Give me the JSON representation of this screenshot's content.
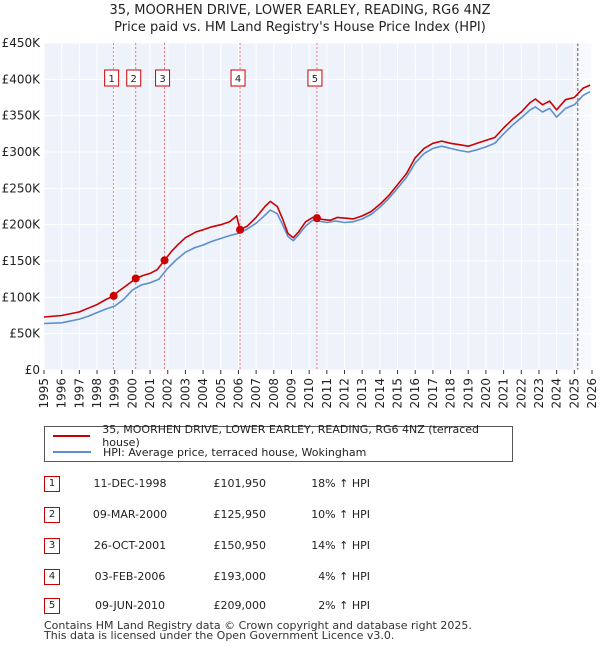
{
  "chart_data": {
    "type": "line",
    "title": "35, MOORHEN DRIVE, LOWER EARLEY, READING, RG6 4NZ",
    "subtitle": "Price paid vs. HM Land Registry's House Price Index (HPI)",
    "xlabel": "",
    "ylabel": "",
    "xlim": [
      1995,
      2026
    ],
    "ylim": [
      0,
      450000
    ],
    "y_ticks": [
      0,
      50000,
      100000,
      150000,
      200000,
      250000,
      300000,
      350000,
      400000,
      450000
    ],
    "y_tick_labels": [
      "£0",
      "£50K",
      "£100K",
      "£150K",
      "£200K",
      "£250K",
      "£300K",
      "£350K",
      "£400K",
      "£450K"
    ],
    "x_ticks": [
      1995,
      1996,
      1997,
      1998,
      1999,
      2000,
      2001,
      2002,
      2003,
      2004,
      2005,
      2006,
      2007,
      2008,
      2009,
      2010,
      2011,
      2012,
      2013,
      2014,
      2015,
      2016,
      2017,
      2018,
      2019,
      2020,
      2021,
      2022,
      2023,
      2024,
      2025,
      2026
    ],
    "x_tick_labels": [
      "1995",
      "1996",
      "1997",
      "1998",
      "1999",
      "2000",
      "2001",
      "2002",
      "2003",
      "2004",
      "2005",
      "2006",
      "2007",
      "2008",
      "2009",
      "2010",
      "2011",
      "2012",
      "2013",
      "2014",
      "2015",
      "2016",
      "2017",
      "2018",
      "2019",
      "2020",
      "2021",
      "2022",
      "2023",
      "2024",
      "2025",
      "2026"
    ],
    "grid": true,
    "forecast_from": 2025.2,
    "series": [
      {
        "name": "35, MOORHEN DRIVE, LOWER EARLEY, READING, RG6 4NZ (terraced house)",
        "color": "#cc0000",
        "x": [
          1995.0,
          1996.0,
          1997.0,
          1997.5,
          1998.0,
          1998.5,
          1998.94,
          1999.2,
          1999.6,
          2000.19,
          2000.6,
          2001.0,
          2001.4,
          2001.82,
          2002.2,
          2002.6,
          2003.0,
          2003.6,
          2004.0,
          2004.5,
          2005.0,
          2005.5,
          2005.9,
          2006.09,
          2006.5,
          2007.0,
          2007.5,
          2007.8,
          2008.2,
          2008.5,
          2008.8,
          2009.1,
          2009.4,
          2009.8,
          2010.2,
          2010.44,
          2010.8,
          2011.2,
          2011.6,
          2012.0,
          2012.5,
          2013.0,
          2013.5,
          2014.0,
          2014.5,
          2015.0,
          2015.5,
          2016.0,
          2016.5,
          2017.0,
          2017.5,
          2018.0,
          2018.5,
          2019.0,
          2019.5,
          2020.0,
          2020.5,
          2021.0,
          2021.5,
          2022.0,
          2022.5,
          2022.8,
          2023.2,
          2023.6,
          2024.0,
          2024.5,
          2025.0,
          2025.5,
          2025.9
        ],
        "values": [
          73000,
          75000,
          80000,
          85000,
          90000,
          97000,
          101950,
          108000,
          115000,
          125950,
          130000,
          133000,
          138000,
          150950,
          163000,
          173000,
          182000,
          190000,
          193000,
          197000,
          200000,
          204000,
          212000,
          193000,
          198000,
          210000,
          225000,
          232000,
          225000,
          208000,
          188000,
          182000,
          190000,
          204000,
          210000,
          209000,
          207000,
          206000,
          210000,
          209000,
          208000,
          212000,
          218000,
          228000,
          240000,
          255000,
          270000,
          292000,
          305000,
          312000,
          315000,
          312000,
          310000,
          308000,
          312000,
          316000,
          320000,
          333000,
          345000,
          355000,
          368000,
          373000,
          365000,
          370000,
          358000,
          372000,
          375000,
          388000,
          392000
        ]
      },
      {
        "name": "HPI: Average price, terraced house, Wokingham",
        "color": "#5b8fd0",
        "x": [
          1995.0,
          1996.0,
          1997.0,
          1997.5,
          1998.0,
          1998.5,
          1999.0,
          1999.5,
          2000.0,
          2000.5,
          2001.0,
          2001.5,
          2002.0,
          2002.5,
          2003.0,
          2003.5,
          2004.0,
          2004.5,
          2005.0,
          2005.5,
          2006.0,
          2006.5,
          2007.0,
          2007.5,
          2007.8,
          2008.2,
          2008.5,
          2008.8,
          2009.1,
          2009.4,
          2009.8,
          2010.2,
          2010.5,
          2011.0,
          2011.5,
          2012.0,
          2012.5,
          2013.0,
          2013.5,
          2014.0,
          2014.5,
          2015.0,
          2015.5,
          2016.0,
          2016.5,
          2017.0,
          2017.5,
          2018.0,
          2018.5,
          2019.0,
          2019.5,
          2020.0,
          2020.5,
          2021.0,
          2021.5,
          2022.0,
          2022.5,
          2022.8,
          2023.2,
          2023.6,
          2024.0,
          2024.5,
          2025.0,
          2025.5,
          2025.9
        ],
        "values": [
          64000,
          65000,
          70000,
          74000,
          79000,
          84000,
          88000,
          97000,
          110000,
          117000,
          120000,
          125000,
          140000,
          152000,
          162000,
          168000,
          172000,
          177000,
          181000,
          185000,
          188000,
          194000,
          202000,
          213000,
          220000,
          215000,
          200000,
          184000,
          178000,
          186000,
          198000,
          206000,
          205000,
          203000,
          205000,
          203000,
          204000,
          208000,
          214000,
          224000,
          236000,
          250000,
          265000,
          285000,
          298000,
          305000,
          308000,
          305000,
          302000,
          300000,
          303000,
          307000,
          312000,
          325000,
          337000,
          347000,
          358000,
          362000,
          355000,
          360000,
          348000,
          360000,
          365000,
          378000,
          383000
        ]
      }
    ],
    "markers": [
      {
        "label": "1",
        "x": 1998.94,
        "y": 101950
      },
      {
        "label": "2",
        "x": 2000.19,
        "y": 125950
      },
      {
        "label": "3",
        "x": 2001.82,
        "y": 150950
      },
      {
        "label": "4",
        "x": 2006.09,
        "y": 193000
      },
      {
        "label": "5",
        "x": 2010.44,
        "y": 209000
      }
    ]
  },
  "legend": {
    "series1_label": "35, MOORHEN DRIVE, LOWER EARLEY, READING, RG6 4NZ (terraced house)",
    "series2_label": "HPI: Average price, terraced house, Wokingham"
  },
  "sales": [
    {
      "num": "1",
      "date": "11-DEC-1998",
      "price": "£101,950",
      "hpi": "18% ↑ HPI"
    },
    {
      "num": "2",
      "date": "09-MAR-2000",
      "price": "£125,950",
      "hpi": "10% ↑ HPI"
    },
    {
      "num": "3",
      "date": "26-OCT-2001",
      "price": "£150,950",
      "hpi": "14% ↑ HPI"
    },
    {
      "num": "4",
      "date": "03-FEB-2006",
      "price": "£193,000",
      "hpi": "4% ↑ HPI"
    },
    {
      "num": "5",
      "date": "09-JUN-2010",
      "price": "£209,000",
      "hpi": "2% ↑ HPI"
    }
  ],
  "footer": {
    "line1": "Contains HM Land Registry data © Crown copyright and database right 2025.",
    "line2": "This data is licensed under the Open Government Licence v3.0."
  }
}
